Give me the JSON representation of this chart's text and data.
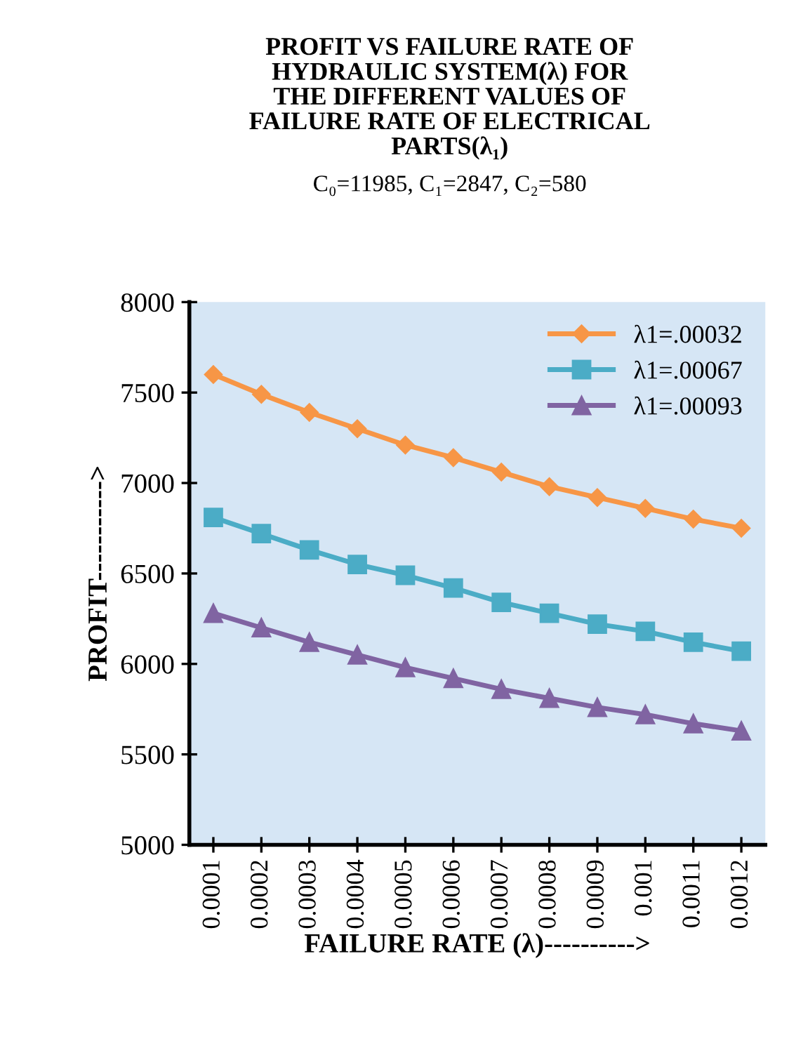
{
  "chart_data": {
    "type": "line",
    "title": "PROFIT VS FAILURE RATE OF\nHYDRAULIC SYSTEM(λ) FOR\nTHE DIFFERENT VALUES OF\nFAILURE RATE OF ELECTRICAL\nPARTS(λ₁)",
    "subtitle": "C₀=11985, C₁=2847, C₂=580",
    "xlabel": "FAILURE RATE (λ)---------->",
    "ylabel": "PROFIT----------->",
    "categories": [
      "0.0001",
      "0.0002",
      "0.0003",
      "0.0004",
      "0.0005",
      "0.0006",
      "0.0007",
      "0.0008",
      "0.0009",
      "0.001",
      "0.0011",
      "0.0012"
    ],
    "series": [
      {
        "name": "λ1=.00032",
        "color": "#f79646",
        "marker": "diamond",
        "values": [
          7600,
          7490,
          7390,
          7300,
          7210,
          7140,
          7060,
          6980,
          6920,
          6860,
          6800,
          6750
        ]
      },
      {
        "name": "λ1=.00067",
        "color": "#4bacc6",
        "marker": "square",
        "values": [
          6810,
          6720,
          6630,
          6550,
          6490,
          6420,
          6340,
          6280,
          6220,
          6180,
          6120,
          6070
        ]
      },
      {
        "name": "λ1=.00093",
        "color": "#8064a2",
        "marker": "triangle",
        "values": [
          6280,
          6200,
          6120,
          6050,
          5980,
          5920,
          5860,
          5810,
          5760,
          5720,
          5670,
          5630
        ]
      }
    ],
    "ylim": [
      5000,
      8000
    ],
    "yticks": [
      5000,
      5500,
      6000,
      6500,
      7000,
      7500,
      8000
    ],
    "grid": false,
    "legend": "top right",
    "line_style": "solid"
  }
}
